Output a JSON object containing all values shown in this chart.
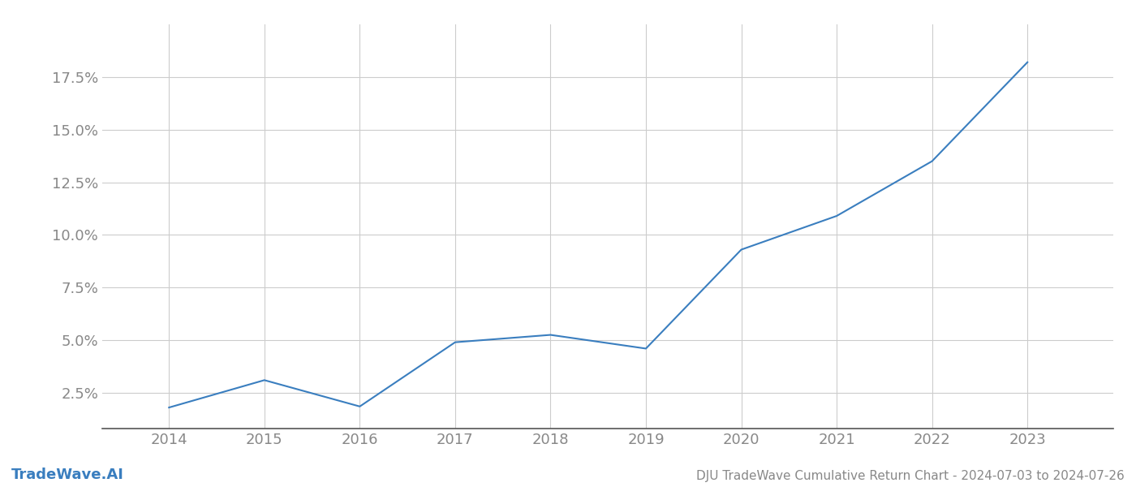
{
  "x_years": [
    2014,
    2015,
    2016,
    2017,
    2018,
    2019,
    2020,
    2021,
    2022,
    2023
  ],
  "y_values": [
    1.8,
    3.1,
    1.85,
    4.9,
    5.25,
    4.6,
    9.3,
    10.9,
    13.5,
    18.2
  ],
  "line_color": "#3a7ebf",
  "line_width": 1.5,
  "background_color": "#ffffff",
  "grid_color": "#cccccc",
  "title": "DJU TradeWave Cumulative Return Chart - 2024-07-03 to 2024-07-26",
  "watermark": "TradeWave.AI",
  "ylim": [
    0.8,
    20
  ],
  "yticks": [
    2.5,
    5.0,
    7.5,
    10.0,
    12.5,
    15.0,
    17.5
  ],
  "xlim": [
    2013.3,
    2023.9
  ],
  "xtick_color": "#888888",
  "ytick_color": "#888888",
  "spine_color": "#555555",
  "title_color": "#888888",
  "watermark_color": "#3a7ebf",
  "title_fontsize": 11,
  "watermark_fontsize": 13,
  "tick_fontsize": 13
}
